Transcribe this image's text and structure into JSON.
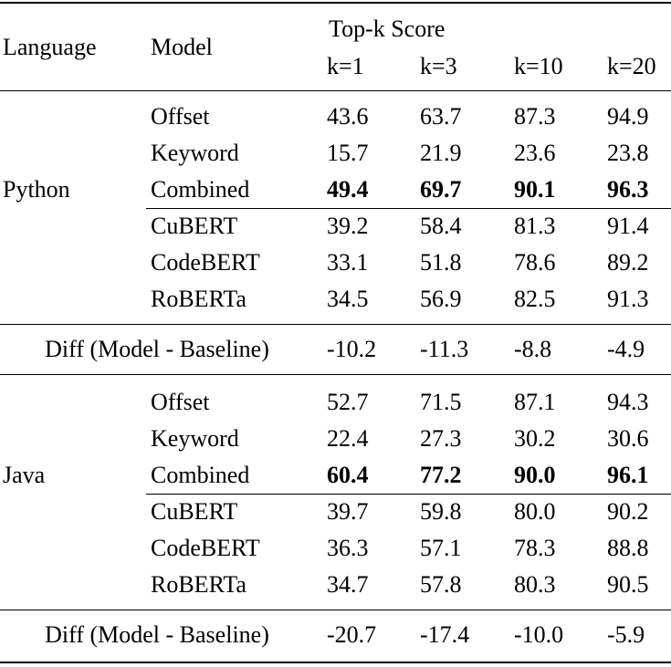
{
  "header": {
    "language": "Language",
    "model": "Model",
    "group": "Top-k Score",
    "ks": [
      "k=1",
      "k=3",
      "k=10",
      "k=20"
    ]
  },
  "sections": [
    {
      "language": "Python",
      "baselines": [
        {
          "model": "Offset",
          "scores": [
            "43.6",
            "63.7",
            "87.3",
            "94.9"
          ],
          "bold": false
        },
        {
          "model": "Keyword",
          "scores": [
            "15.7",
            "21.9",
            "23.6",
            "23.8"
          ],
          "bold": false
        },
        {
          "model": "Combined",
          "scores": [
            "49.4",
            "69.7",
            "90.1",
            "96.3"
          ],
          "bold": true
        }
      ],
      "models": [
        {
          "model": "CuBERT",
          "scores": [
            "39.2",
            "58.4",
            "81.3",
            "91.4"
          ],
          "bold": false
        },
        {
          "model": "CodeBERT",
          "scores": [
            "33.1",
            "51.8",
            "78.6",
            "89.2"
          ],
          "bold": false
        },
        {
          "model": "RoBERTa",
          "scores": [
            "34.5",
            "56.9",
            "82.5",
            "91.3"
          ],
          "bold": false
        }
      ],
      "diff": {
        "label": "Diff (Model - Baseline)",
        "scores": [
          "-10.2",
          "-11.3",
          "-8.8",
          "-4.9"
        ]
      }
    },
    {
      "language": "Java",
      "baselines": [
        {
          "model": "Offset",
          "scores": [
            "52.7",
            "71.5",
            "87.1",
            "94.3"
          ],
          "bold": false
        },
        {
          "model": "Keyword",
          "scores": [
            "22.4",
            "27.3",
            "30.2",
            "30.6"
          ],
          "bold": false
        },
        {
          "model": "Combined",
          "scores": [
            "60.4",
            "77.2",
            "90.0",
            "96.1"
          ],
          "bold": true
        }
      ],
      "models": [
        {
          "model": "CuBERT",
          "scores": [
            "39.7",
            "59.8",
            "80.0",
            "90.2"
          ],
          "bold": false
        },
        {
          "model": "CodeBERT",
          "scores": [
            "36.3",
            "57.1",
            "78.3",
            "88.8"
          ],
          "bold": false
        },
        {
          "model": "RoBERTa",
          "scores": [
            "34.7",
            "57.8",
            "80.3",
            "90.5"
          ],
          "bold": false
        }
      ],
      "diff": {
        "label": "Diff (Model - Baseline)",
        "scores": [
          "-20.7",
          "-17.4",
          "-10.0",
          "-5.9"
        ]
      }
    }
  ]
}
